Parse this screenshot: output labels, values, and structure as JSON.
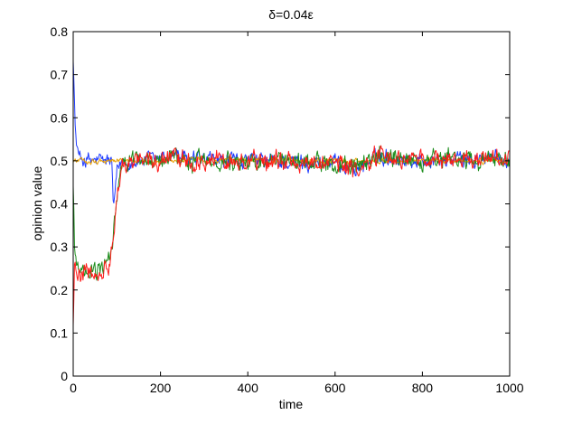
{
  "chart_data": {
    "type": "line",
    "title": "δ=0.04ε",
    "xlabel": "time",
    "ylabel": "opinion value",
    "xlim": [
      0,
      1000
    ],
    "ylim": [
      0,
      0.8
    ],
    "xticks": [
      0,
      200,
      400,
      600,
      800,
      1000
    ],
    "yticks": [
      0,
      0.1,
      0.2,
      0.3,
      0.4,
      0.5,
      0.6,
      0.7,
      0.8
    ],
    "xtick_labels": [
      "0",
      "200",
      "400",
      "600",
      "800",
      "1000"
    ],
    "ytick_labels": [
      "0",
      "0.1",
      "0.2",
      "0.3",
      "0.4",
      "0.5",
      "0.6",
      "0.7",
      "0.8"
    ],
    "grid": false,
    "legend": "none",
    "series": [
      {
        "color": "#1f3cff",
        "noise": 0.012,
        "points": [
          [
            0,
            0.75
          ],
          [
            5,
            0.56
          ],
          [
            12,
            0.51
          ],
          [
            30,
            0.5
          ],
          [
            60,
            0.5
          ],
          [
            88,
            0.5
          ],
          [
            90,
            0.46
          ],
          [
            92,
            0.38
          ],
          [
            96,
            0.42
          ],
          [
            100,
            0.47
          ],
          [
            110,
            0.495
          ],
          [
            150,
            0.5
          ],
          [
            200,
            0.505
          ],
          [
            230,
            0.52
          ],
          [
            260,
            0.5
          ],
          [
            400,
            0.5
          ],
          [
            600,
            0.495
          ],
          [
            650,
            0.48
          ],
          [
            700,
            0.51
          ],
          [
            800,
            0.5
          ],
          [
            1000,
            0.505
          ]
        ]
      },
      {
        "color": "#e8a000",
        "noise": 0.004,
        "points": [
          [
            0,
            0.5
          ],
          [
            1000,
            0.5
          ]
        ]
      },
      {
        "color": "#1a8c1a",
        "noise": 0.014,
        "points": [
          [
            0,
            0.45
          ],
          [
            3,
            0.3
          ],
          [
            8,
            0.26
          ],
          [
            20,
            0.24
          ],
          [
            40,
            0.24
          ],
          [
            70,
            0.25
          ],
          [
            85,
            0.27
          ],
          [
            92,
            0.33
          ],
          [
            100,
            0.42
          ],
          [
            110,
            0.48
          ],
          [
            130,
            0.5
          ],
          [
            200,
            0.5
          ],
          [
            230,
            0.52
          ],
          [
            260,
            0.5
          ],
          [
            400,
            0.5
          ],
          [
            600,
            0.495
          ],
          [
            650,
            0.48
          ],
          [
            700,
            0.51
          ],
          [
            800,
            0.5
          ],
          [
            1000,
            0.505
          ]
        ]
      },
      {
        "color": "#ff1a1a",
        "noise": 0.014,
        "points": [
          [
            0,
            0.12
          ],
          [
            3,
            0.28
          ],
          [
            8,
            0.25
          ],
          [
            20,
            0.235
          ],
          [
            40,
            0.24
          ],
          [
            70,
            0.25
          ],
          [
            85,
            0.27
          ],
          [
            92,
            0.32
          ],
          [
            100,
            0.43
          ],
          [
            110,
            0.48
          ],
          [
            130,
            0.5
          ],
          [
            200,
            0.5
          ],
          [
            230,
            0.52
          ],
          [
            260,
            0.5
          ],
          [
            400,
            0.5
          ],
          [
            600,
            0.495
          ],
          [
            650,
            0.48
          ],
          [
            700,
            0.51
          ],
          [
            800,
            0.5
          ],
          [
            1000,
            0.505
          ]
        ]
      }
    ]
  }
}
